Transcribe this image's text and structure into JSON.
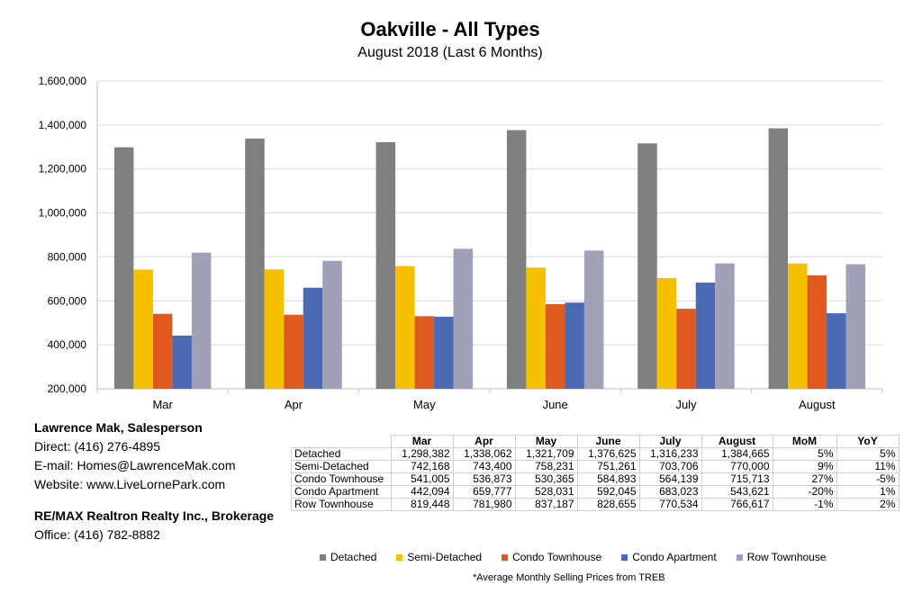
{
  "chart_data": {
    "type": "bar",
    "title": "Oakville - All Types",
    "subtitle": "August 2018 (Last 6 Months)",
    "categories": [
      "Mar",
      "Apr",
      "May",
      "June",
      "July",
      "August"
    ],
    "ylim": [
      200000,
      1600000
    ],
    "yticks": [
      "200,000",
      "400,000",
      "600,000",
      "800,000",
      "1,000,000",
      "1,200,000",
      "1,400,000",
      "1,600,000"
    ],
    "ytick_values": [
      200000,
      400000,
      600000,
      800000,
      1000000,
      1200000,
      1400000,
      1600000
    ],
    "grid": true,
    "legend_position": "bottom",
    "series": [
      {
        "name": "Detached",
        "color": "#7f7f7f",
        "values": [
          1298382,
          1338062,
          1321709,
          1376625,
          1316233,
          1384665
        ]
      },
      {
        "name": "Semi-Detached",
        "color": "#f5c000",
        "values": [
          742168,
          743400,
          758231,
          751261,
          703706,
          770000
        ]
      },
      {
        "name": "Condo Townhouse",
        "color": "#e05a20",
        "values": [
          541005,
          536873,
          530365,
          584893,
          564139,
          715713
        ]
      },
      {
        "name": "Condo Apartment",
        "color": "#4a6ab4",
        "values": [
          442094,
          659777,
          528031,
          592045,
          683023,
          543621
        ]
      },
      {
        "name": "Row Townhouse",
        "color": "#a0a0b8",
        "values": [
          819448,
          781980,
          837187,
          828655,
          770534,
          766617
        ]
      }
    ]
  },
  "contact": {
    "name": "Lawrence Mak, Salesperson",
    "direct": "Direct:  (416) 276-4895",
    "email": "E-mail:  Homes@LawrenceMak.com",
    "website": "Website: www.LiveLornePark.com"
  },
  "brokerage": {
    "name": "RE/MAX Realtron Realty Inc., Brokerage",
    "office": "Office: (416) 782-8882"
  },
  "table": {
    "headers": [
      "Mar",
      "Apr",
      "May",
      "June",
      "July",
      "August",
      "MoM",
      "YoY"
    ],
    "rows": [
      {
        "label": "Detached",
        "cells": [
          "1,298,382",
          "1,338,062",
          "1,321,709",
          "1,376,625",
          "1,316,233",
          "1,384,665",
          "5%",
          "5%"
        ]
      },
      {
        "label": "Semi-Detached",
        "cells": [
          "742,168",
          "743,400",
          "758,231",
          "751,261",
          "703,706",
          "770,000",
          "9%",
          "11%"
        ]
      },
      {
        "label": "Condo Townhouse",
        "cells": [
          "541,005",
          "536,873",
          "530,365",
          "584,893",
          "564,139",
          "715,713",
          "27%",
          "-5%"
        ]
      },
      {
        "label": "Condo Apartment",
        "cells": [
          "442,094",
          "659,777",
          "528,031",
          "592,045",
          "683,023",
          "543,621",
          "-20%",
          "1%"
        ]
      },
      {
        "label": "Row Townhouse",
        "cells": [
          "819,448",
          "781,980",
          "837,187",
          "828,655",
          "770,534",
          "766,617",
          "-1%",
          "2%"
        ]
      }
    ]
  },
  "footnote": "*Average Monthly Selling Prices  from TREB"
}
